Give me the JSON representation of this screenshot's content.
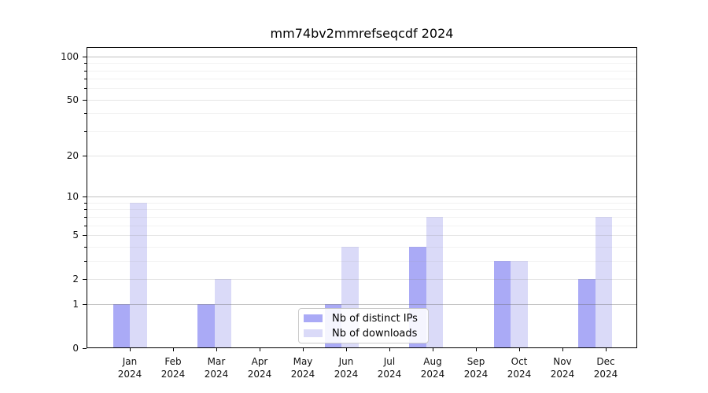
{
  "chart_data": {
    "type": "bar",
    "title": "mm74bv2mmrefseqcdf 2024",
    "yscale": "log1p",
    "ylim": [
      0,
      116
    ],
    "grid": true,
    "legend_position": "lower center",
    "categories": [
      "Jan",
      "Feb",
      "Mar",
      "Apr",
      "May",
      "Jun",
      "Jul",
      "Aug",
      "Sep",
      "Oct",
      "Nov",
      "Dec"
    ],
    "x_tick_year": "2024",
    "series": [
      {
        "name": "Nb of distinct IPs",
        "color": "#aaaaf6",
        "values": [
          1,
          0,
          1,
          0,
          0,
          1,
          0,
          4,
          0,
          3,
          0,
          2
        ]
      },
      {
        "name": "Nb of downloads",
        "color": "#dadaf8",
        "values": [
          9,
          0,
          2,
          0,
          0,
          4,
          0,
          7,
          0,
          3,
          0,
          7
        ]
      }
    ],
    "y_major_ticks": [
      0,
      1,
      2,
      5,
      10,
      20,
      50,
      100
    ],
    "y_decade_ticks": [
      1,
      10,
      100
    ],
    "y_minor_ticks": [
      3,
      4,
      6,
      7,
      8,
      9,
      30,
      40,
      60,
      70,
      80,
      90
    ],
    "axis_color": "#000000"
  }
}
